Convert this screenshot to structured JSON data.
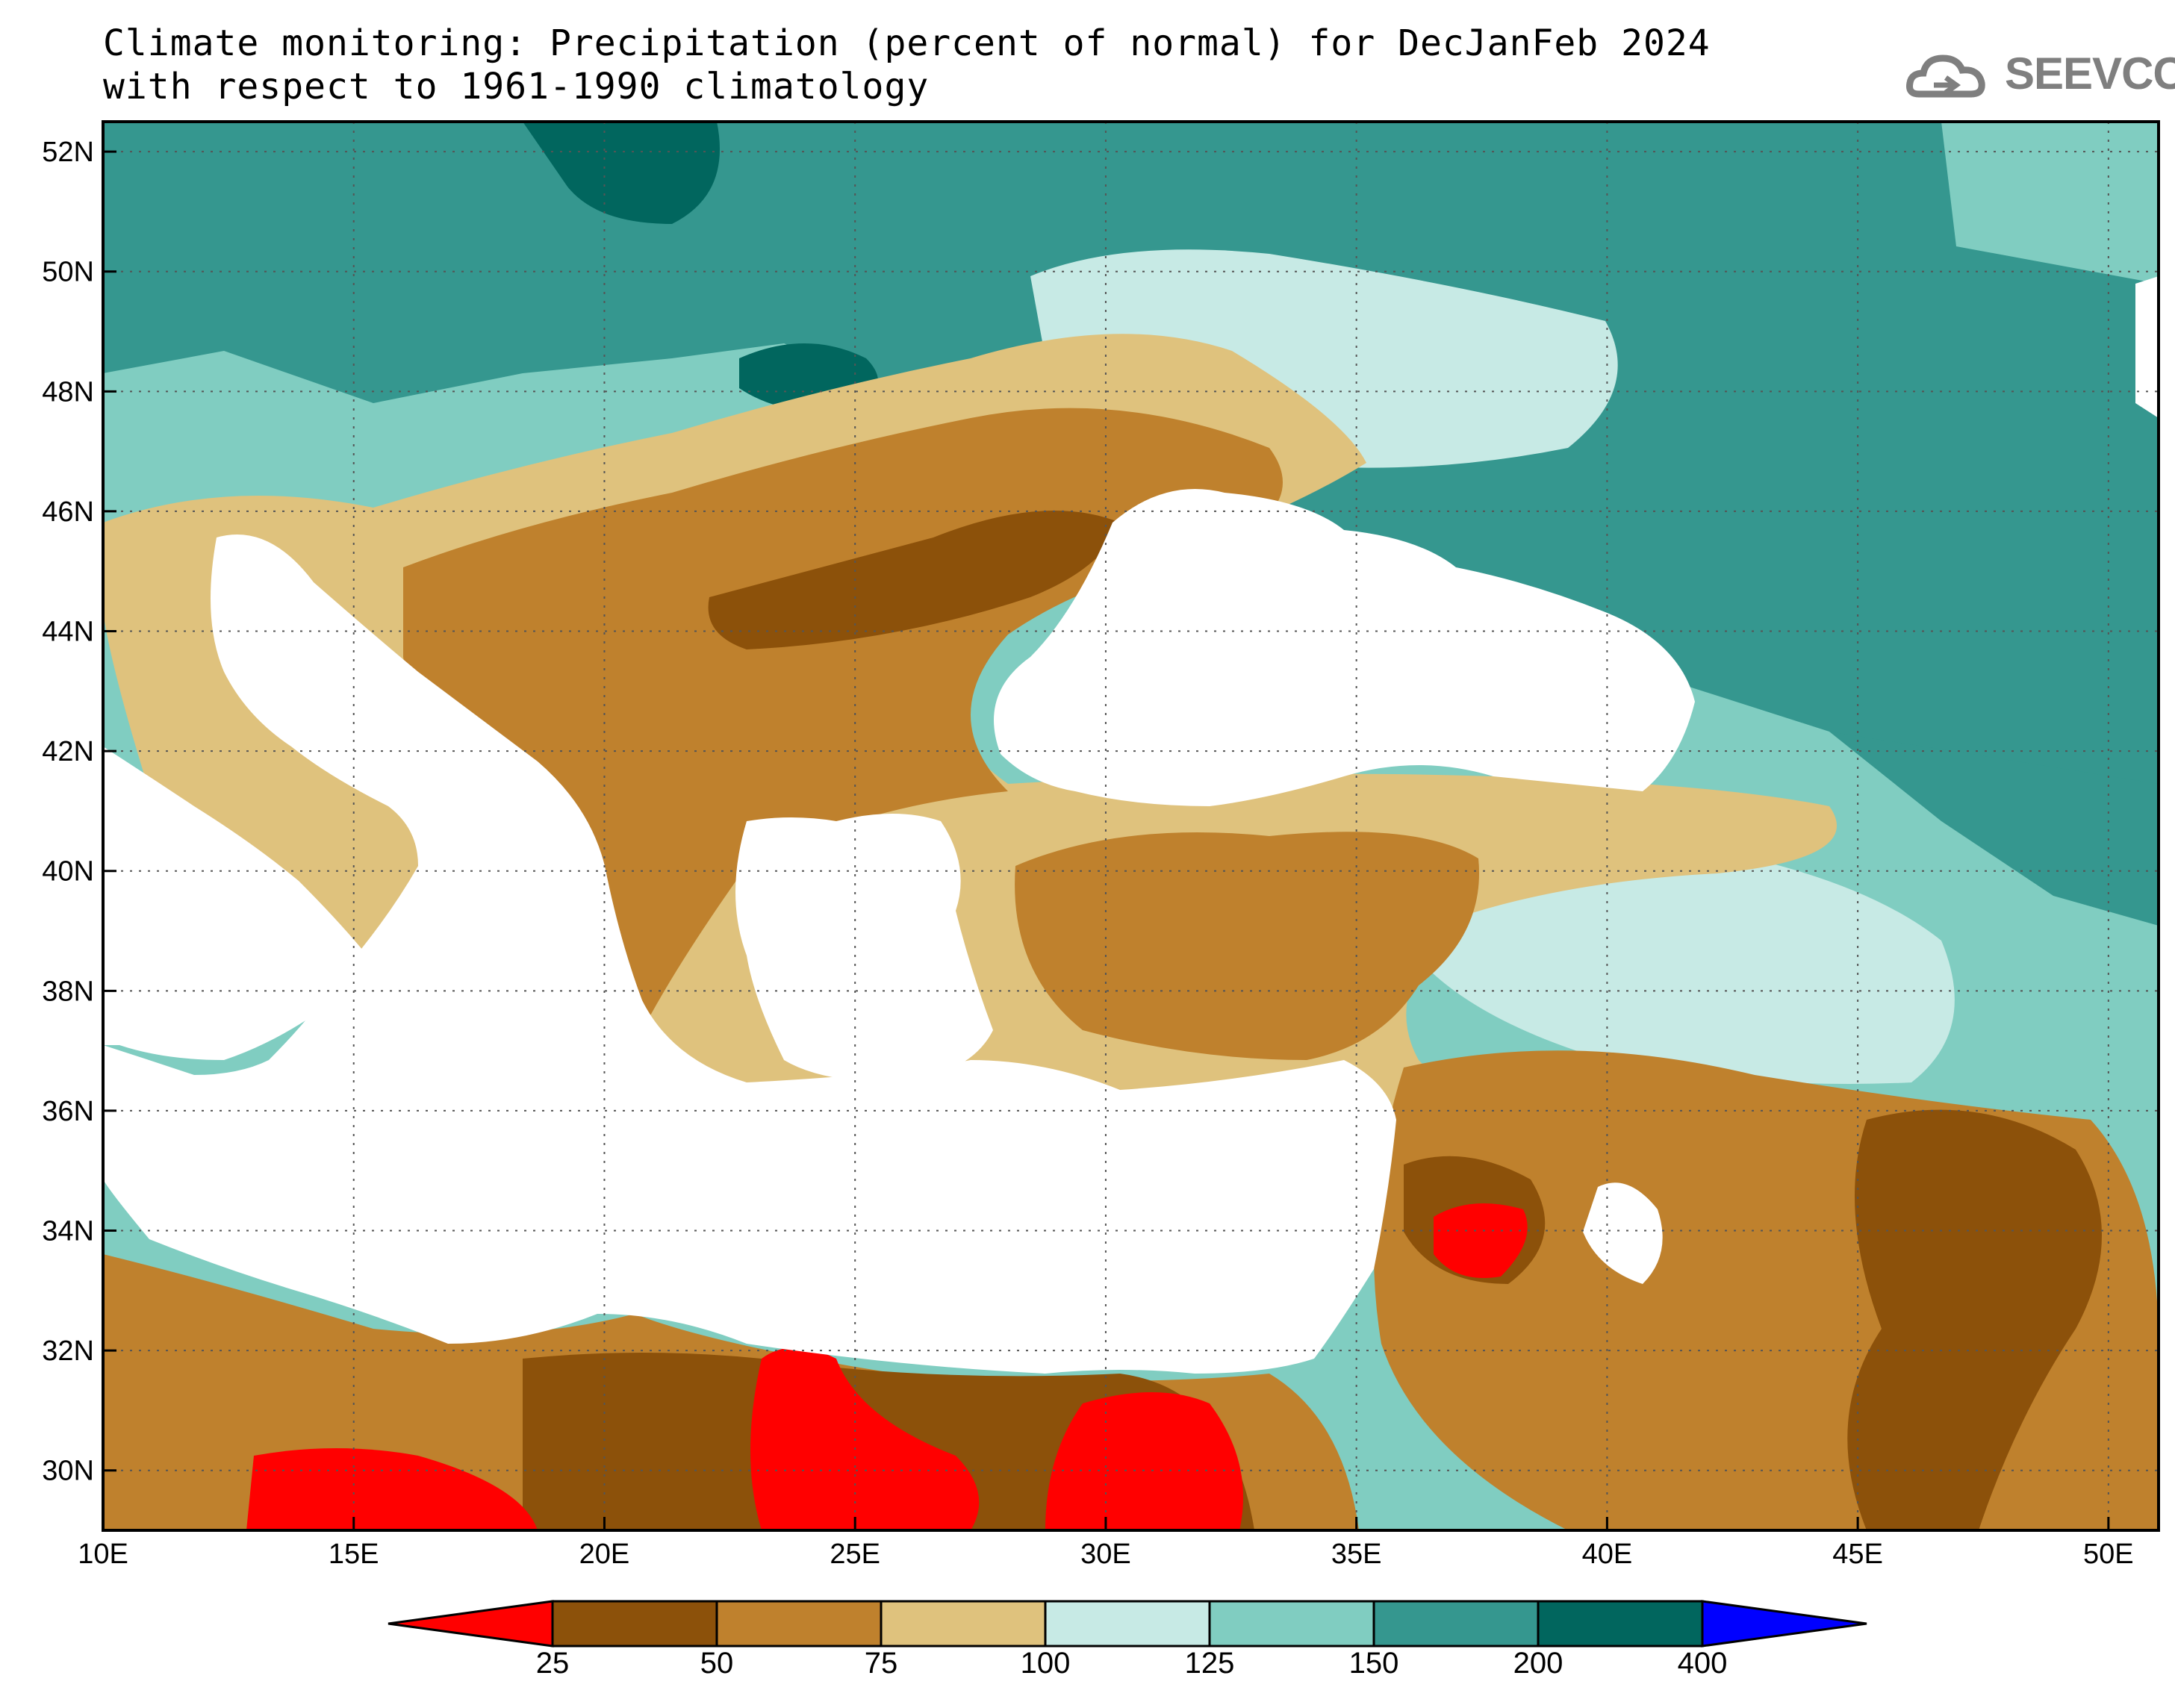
{
  "title": {
    "line1": "Climate monitoring: Precipitation (percent of normal) for DecJanFeb 2024",
    "line2": "with respect to 1961-1990 climatology"
  },
  "logo": {
    "text": "SEEVCCC",
    "icon": "cloud-icon"
  },
  "map": {
    "lon_range": [
      10,
      51
    ],
    "lat_range": [
      29,
      52.5
    ],
    "lon_ticks": [
      "10E",
      "15E",
      "20E",
      "25E",
      "30E",
      "35E",
      "40E",
      "45E",
      "50E"
    ],
    "lat_ticks": [
      "30N",
      "32N",
      "34N",
      "36N",
      "38N",
      "40N",
      "42N",
      "44N",
      "46N",
      "48N",
      "50N",
      "52N"
    ],
    "regions": [
      {
        "name": "north-teal",
        "color": "#33938a"
      },
      {
        "name": "central-europe",
        "color": "#80cdc1"
      },
      {
        "name": "balkans-dry",
        "color": "#bf812d"
      },
      {
        "name": "danube-very-dry",
        "color": "#8c510a"
      },
      {
        "name": "anatolia-dry",
        "color": "#dfc27d"
      },
      {
        "name": "caucasus-wet",
        "color": "#01665e"
      },
      {
        "name": "levant-extreme-dry",
        "color": "#ff0000"
      },
      {
        "name": "libya-egypt-extreme-dry",
        "color": "#ff0000"
      }
    ]
  },
  "colorbar": {
    "bins": [
      {
        "color": "#ff0000"
      },
      {
        "color": "#8c510a"
      },
      {
        "color": "#bf812d"
      },
      {
        "color": "#dfc27d"
      },
      {
        "color": "#c7eae5"
      },
      {
        "color": "#80cdc1"
      },
      {
        "color": "#35978f"
      },
      {
        "color": "#01665e"
      },
      {
        "color": "#0000ff"
      }
    ],
    "labels": [
      "25",
      "50",
      "75",
      "100",
      "125",
      "150",
      "200",
      "400"
    ]
  }
}
